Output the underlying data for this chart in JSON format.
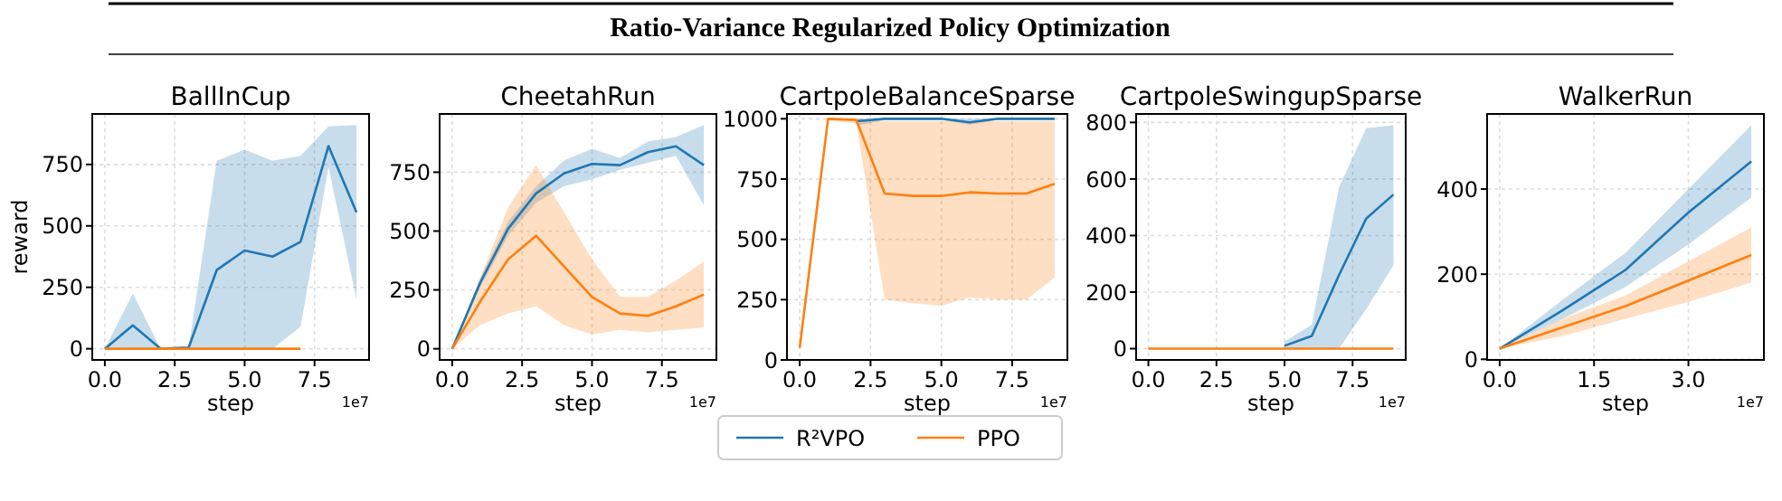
{
  "chart_data": [
    {
      "type": "line",
      "title": "BallInCup",
      "xlabel": "step",
      "ylabel": "reward",
      "x": [
        0,
        1,
        2,
        3,
        4,
        5,
        6,
        7,
        8,
        9
      ],
      "xlim": [
        -0.45,
        9.45
      ],
      "xticks": [
        {
          "value": 0,
          "label": "0.0"
        },
        {
          "value": 2.5,
          "label": "2.5"
        },
        {
          "value": 5,
          "label": "5.0"
        },
        {
          "value": 7.5,
          "label": "7.5"
        }
      ],
      "ylim": [
        -45.5,
        955.5
      ],
      "yticks": [
        0,
        250,
        500,
        750
      ],
      "grid": true,
      "legend": "bottom",
      "annotations": [
        "1e7",
        "Ratio-Variance Regularized Policy Optimization"
      ],
      "series": [
        {
          "name": "R²VPO",
          "color": "#1f77b4",
          "values": [
            0,
            95,
            0,
            5,
            320,
            400,
            375,
            435,
            825,
            555
          ],
          "lower": [
            0,
            0,
            0,
            0,
            0,
            0,
            0,
            90,
            740,
            200
          ],
          "upper": [
            0,
            225,
            0,
            5,
            765,
            810,
            765,
            785,
            905,
            910
          ]
        },
        {
          "name": "PPO",
          "color": "#ff7f0e",
          "values": [
            0,
            0,
            0,
            0,
            0,
            0,
            0,
            0,
            null,
            null
          ]
        }
      ]
    },
    {
      "type": "line",
      "title": "CheetahRun",
      "xlabel": "step",
      "x": [
        0,
        1,
        2,
        3,
        4,
        5,
        6,
        7,
        8,
        9
      ],
      "xlim": [
        -0.45,
        9.45
      ],
      "xticks": [
        {
          "value": 0,
          "label": "0.0"
        },
        {
          "value": 2.5,
          "label": "2.5"
        },
        {
          "value": 5,
          "label": "5.0"
        },
        {
          "value": 7.5,
          "label": "7.5"
        }
      ],
      "ylim": [
        -47.5,
        997.5
      ],
      "yticks": [
        0,
        250,
        500,
        750
      ],
      "grid": true,
      "annotations": [
        "1e7"
      ],
      "series": [
        {
          "color": "#1f77b4",
          "values": [
            0,
            280,
            510,
            660,
            745,
            785,
            780,
            835,
            860,
            780
          ],
          "lower": [
            0,
            260,
            480,
            620,
            690,
            720,
            760,
            790,
            820,
            610
          ],
          "upper": [
            0,
            300,
            540,
            690,
            800,
            850,
            810,
            880,
            900,
            950
          ]
        },
        {
          "color": "#ff7f0e",
          "values": [
            0,
            200,
            380,
            480,
            350,
            220,
            150,
            140,
            180,
            230
          ],
          "lower": [
            0,
            100,
            150,
            180,
            100,
            60,
            80,
            70,
            80,
            90
          ],
          "upper": [
            0,
            300,
            600,
            780,
            580,
            380,
            220,
            220,
            290,
            370
          ]
        }
      ]
    },
    {
      "type": "line",
      "title": "CartpoleBalanceSparse",
      "xlabel": "step",
      "x": [
        0,
        1,
        2,
        3,
        4,
        5,
        6,
        7,
        8,
        9
      ],
      "xlim": [
        -0.45,
        9.45
      ],
      "xticks": [
        {
          "value": 0,
          "label": "0.0"
        },
        {
          "value": 2.5,
          "label": "2.5"
        },
        {
          "value": 5,
          "label": "5.0"
        },
        {
          "value": 7.5,
          "label": "7.5"
        }
      ],
      "ylim": [
        0,
        1020
      ],
      "yticks": [
        0,
        250,
        500,
        750,
        1000
      ],
      "grid": true,
      "annotations": [
        "1e7"
      ],
      "series": [
        {
          "color": "#1f77b4",
          "values": [
            null,
            null,
            990,
            1000,
            1000,
            1000,
            985,
            1000,
            1000,
            1000
          ],
          "lower": [
            null,
            null,
            970,
            995,
            995,
            995,
            975,
            995,
            995,
            995
          ],
          "upper": [
            null,
            null,
            1000,
            1000,
            1000,
            1000,
            1000,
            1000,
            1000,
            1000
          ]
        },
        {
          "color": "#ff7f0e",
          "values": [
            50,
            1000,
            995,
            690,
            680,
            680,
            695,
            690,
            690,
            730
          ],
          "lower": [
            50,
            995,
            980,
            250,
            235,
            225,
            260,
            250,
            250,
            340
          ],
          "upper": [
            50,
            1000,
            1000,
            990,
            990,
            990,
            990,
            990,
            990,
            990
          ]
        }
      ]
    },
    {
      "type": "line",
      "title": "CartpoleSwingupSparse",
      "xlabel": "step",
      "x": [
        0,
        1,
        2,
        3,
        4,
        5,
        6,
        7,
        8,
        9
      ],
      "xlim": [
        -0.45,
        9.45
      ],
      "xticks": [
        {
          "value": 0,
          "label": "0.0"
        },
        {
          "value": 2.5,
          "label": "2.5"
        },
        {
          "value": 5,
          "label": "5.0"
        },
        {
          "value": 7.5,
          "label": "7.5"
        }
      ],
      "ylim": [
        -40,
        830
      ],
      "yticks": [
        0,
        200,
        400,
        600,
        800
      ],
      "grid": true,
      "annotations": [
        "1e7"
      ],
      "series": [
        {
          "color": "#1f77b4",
          "values": [
            null,
            null,
            null,
            null,
            null,
            10,
            45,
            260,
            460,
            545
          ],
          "lower": [
            null,
            null,
            null,
            null,
            null,
            0,
            0,
            0,
            140,
            295
          ],
          "upper": [
            null,
            null,
            null,
            null,
            null,
            25,
            85,
            570,
            780,
            790
          ]
        },
        {
          "color": "#ff7f0e",
          "values": [
            0,
            0,
            0,
            0,
            0,
            0,
            0,
            0,
            0,
            0
          ]
        }
      ]
    },
    {
      "type": "line",
      "title": "WalkerRun",
      "xlabel": "step",
      "x": [
        0,
        1,
        2,
        3,
        4
      ],
      "xlim": [
        -0.2,
        4.2
      ],
      "xticks": [
        {
          "value": 0,
          "label": "0.0"
        },
        {
          "value": 1.5,
          "label": "1.5"
        },
        {
          "value": 3,
          "label": "3.0"
        }
      ],
      "ylim": [
        -1.5,
        576.5
      ],
      "yticks": [
        0,
        200,
        400
      ],
      "grid": true,
      "annotations": [
        "1e7"
      ],
      "series": [
        {
          "color": "#1f77b4",
          "values": [
            25,
            115,
            210,
            345,
            465
          ],
          "lower": [
            25,
            95,
            170,
            270,
            380
          ],
          "upper": [
            25,
            140,
            250,
            400,
            550
          ]
        },
        {
          "color": "#ff7f0e",
          "values": [
            25,
            75,
            125,
            185,
            245
          ],
          "lower": [
            25,
            55,
            95,
            135,
            180
          ],
          "upper": [
            25,
            95,
            150,
            230,
            310
          ]
        }
      ]
    }
  ]
}
